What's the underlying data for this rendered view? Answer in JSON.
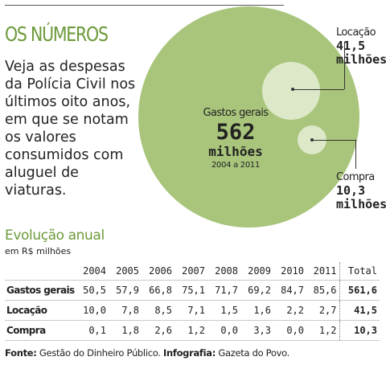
{
  "title": "OS NÚMEROS",
  "intro": "Veja as despesas da Polícia Civil nos últimos oito anos, em que se notam os valores consumidos com aluguel de viaturas.",
  "colors": {
    "accent": "#6d9a3a",
    "circle_main": "#a8c57b",
    "circle_sub": "#dde8c9"
  },
  "bubbles": {
    "main": {
      "label": "Gastos gerais",
      "value": "562",
      "unit": "milhões",
      "period": "2004 a 2011"
    },
    "locacao": {
      "label": "Locação",
      "value": "41,5",
      "unit": "milhões"
    },
    "compra": {
      "label": "Compra",
      "value": "10,3",
      "unit": "milhões"
    }
  },
  "table": {
    "title": "Evolução anual",
    "unit": "em R$ milhões",
    "years": [
      "2004",
      "2005",
      "2006",
      "2007",
      "2008",
      "2009",
      "2010",
      "2011"
    ],
    "total_label": "Total",
    "rows": [
      {
        "label": "Gastos gerais",
        "values": [
          "50,5",
          "57,9",
          "66,8",
          "75,1",
          "71,7",
          "69,2",
          "84,7",
          "85,6"
        ],
        "total": "561,6"
      },
      {
        "label": "Locação",
        "values": [
          "10,0",
          "7,8",
          "8,5",
          "7,1",
          "1,5",
          "1,6",
          "2,2",
          "2,7"
        ],
        "total": "41,5"
      },
      {
        "label": "Compra",
        "values": [
          "0,1",
          "1,8",
          "2,6",
          "1,2",
          "0,0",
          "3,3",
          "0,0",
          "1,2"
        ],
        "total": "10,3"
      }
    ]
  },
  "source": {
    "label1": "Fonte:",
    "text1": " Gestão do Dinheiro Público. ",
    "label2": "Infografia:",
    "text2": " Gazeta do Povo."
  },
  "chart_data": [
    {
      "type": "bubble",
      "title": "",
      "series": [
        {
          "name": "Gastos gerais",
          "value": 562
        },
        {
          "name": "Locação",
          "value": 41.5
        },
        {
          "name": "Compra",
          "value": 10.3
        }
      ]
    },
    {
      "type": "table",
      "title": "Evolução anual",
      "ylabel": "em R$ milhões",
      "categories": [
        "2004",
        "2005",
        "2006",
        "2007",
        "2008",
        "2009",
        "2010",
        "2011"
      ],
      "series": [
        {
          "name": "Gastos gerais",
          "values": [
            50.5,
            57.9,
            66.8,
            75.1,
            71.7,
            69.2,
            84.7,
            85.6
          ],
          "total": 561.6
        },
        {
          "name": "Locação",
          "values": [
            10.0,
            7.8,
            8.5,
            7.1,
            1.5,
            1.6,
            2.2,
            2.7
          ],
          "total": 41.5
        },
        {
          "name": "Compra",
          "values": [
            0.1,
            1.8,
            2.6,
            1.2,
            0.0,
            3.3,
            0.0,
            1.2
          ],
          "total": 10.3
        }
      ]
    }
  ]
}
